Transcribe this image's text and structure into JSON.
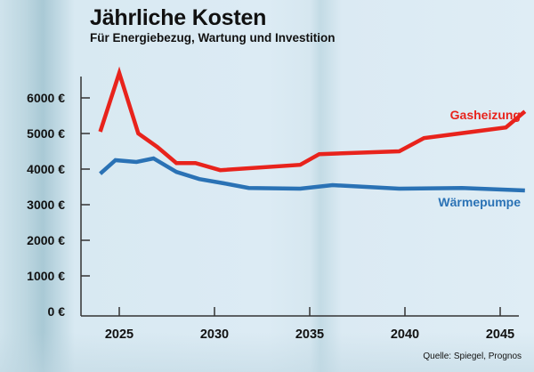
{
  "header": {
    "title": "Jährliche Kosten",
    "subtitle": "Für Energiebezug, Wartung und Investition"
  },
  "source": "Quelle: Spiegel, Prognos",
  "chart_data": {
    "type": "line",
    "title": "Jährliche Kosten",
    "subtitle": "Für Energiebezug, Wartung und Investition",
    "xlabel": "",
    "ylabel": "",
    "xlim": [
      2023.5,
      2046.3
    ],
    "ylim": [
      0,
      6800
    ],
    "grid": false,
    "x_ticks": [
      2025,
      2030,
      2035,
      2040,
      2045
    ],
    "x_tick_labels": [
      "2025",
      "2030",
      "2035",
      "2040",
      "2045"
    ],
    "y_ticks": [
      0,
      1000,
      2000,
      3000,
      4000,
      5000,
      6000
    ],
    "y_tick_labels": [
      "0 €",
      "1000 €",
      "2000 €",
      "3000 €",
      "4000 €",
      "5000 €",
      "6000 €"
    ],
    "series": [
      {
        "name": "Gasheizung",
        "color": "#e8231c",
        "label_position": "above-right",
        "x": [
          2024,
          2025,
          2026,
          2027,
          2028,
          2029,
          2030.3,
          2034.5,
          2035.5,
          2039.7,
          2041,
          2045.3,
          2046.3
        ],
        "values": [
          5050,
          6700,
          5000,
          4620,
          4170,
          4170,
          3970,
          4120,
          4420,
          4500,
          4870,
          5170,
          5620
        ]
      },
      {
        "name": "Wärmepumpe",
        "color": "#2a72b5",
        "label_position": "below-right",
        "x": [
          2024,
          2024.8,
          2025.9,
          2026.8,
          2028,
          2029.2,
          2030.5,
          2031.8,
          2034.5,
          2036.2,
          2039.7,
          2043,
          2046.3
        ],
        "values": [
          3870,
          4250,
          4200,
          4300,
          3920,
          3720,
          3600,
          3470,
          3450,
          3550,
          3450,
          3470,
          3400
        ]
      }
    ]
  }
}
